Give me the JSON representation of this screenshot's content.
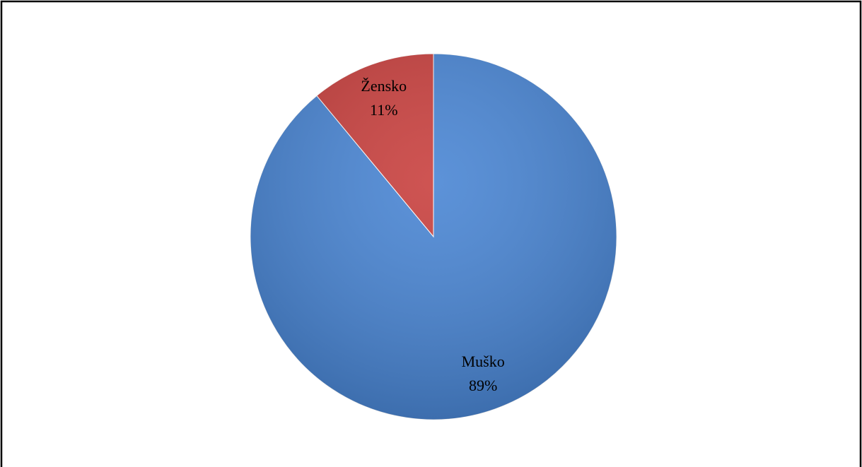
{
  "chart_data": {
    "type": "pie",
    "categories": [
      "Muško",
      "Žensko"
    ],
    "values": [
      89,
      11
    ],
    "value_labels": [
      "89%",
      "11%"
    ],
    "colors": [
      "#4a86d4",
      "#c9413f"
    ]
  }
}
